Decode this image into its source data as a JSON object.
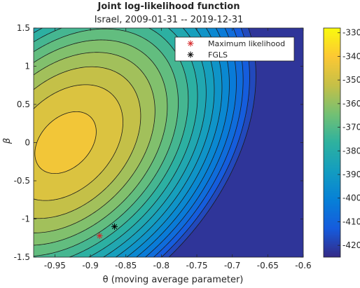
{
  "chart_data": {
    "type": "contour",
    "title": "Joint log-likelihood function",
    "subtitle": "Israel, 2009-01-31 -- 2019-12-31",
    "xlabel": "θ (moving average parameter)",
    "ylabel": "β",
    "xlim": [
      -0.98,
      -0.6
    ],
    "ylim": [
      -1.5,
      1.5
    ],
    "x_ticks": [
      -0.95,
      -0.9,
      -0.85,
      -0.8,
      -0.75,
      -0.7,
      -0.65,
      -0.6
    ],
    "x_tick_labels": [
      "-0.95",
      "-0.9",
      "-0.85",
      "-0.8",
      "-0.75",
      "-0.7",
      "-0.65",
      "-0.6"
    ],
    "y_ticks": [
      1.5,
      1,
      0.5,
      0,
      -0.5,
      -1,
      -1.5
    ],
    "y_tick_labels": [
      "1.5",
      "1",
      "0.5",
      "0",
      "-0.5",
      "-1",
      "-1.5"
    ],
    "colorbar": {
      "range": [
        -425,
        -328
      ],
      "ticks": [
        -330,
        -340,
        -350,
        -360,
        -370,
        -380,
        -390,
        -400,
        -410,
        -420
      ],
      "tick_labels": [
        "-330",
        "-340",
        "-350",
        "-360",
        "-370",
        "-380",
        "-390",
        "-400",
        "-410",
        "-420"
      ]
    },
    "surface": {
      "peak_value": -343,
      "peak_theta": -0.935,
      "peak_beta": 0.0
    },
    "contour_levels": [
      -345,
      -350,
      -355,
      -360,
      -365,
      -370,
      -375,
      -380,
      -385,
      -390,
      -395,
      -400,
      -405,
      -410,
      -415,
      -420
    ],
    "points": [
      {
        "label": "Maximum likelihood",
        "theta": -0.887,
        "beta": -1.22,
        "color": "#d62728",
        "marker": "*"
      },
      {
        "label": "FGLS",
        "theta": -0.866,
        "beta": -1.1,
        "color": "#000000",
        "marker": "*"
      }
    ],
    "legend": {
      "position": "top-right",
      "entries": [
        {
          "label": "Maximum likelihood",
          "color": "#d62728"
        },
        {
          "label": "FGLS",
          "color": "#000000"
        }
      ]
    },
    "colormap": "parula"
  }
}
